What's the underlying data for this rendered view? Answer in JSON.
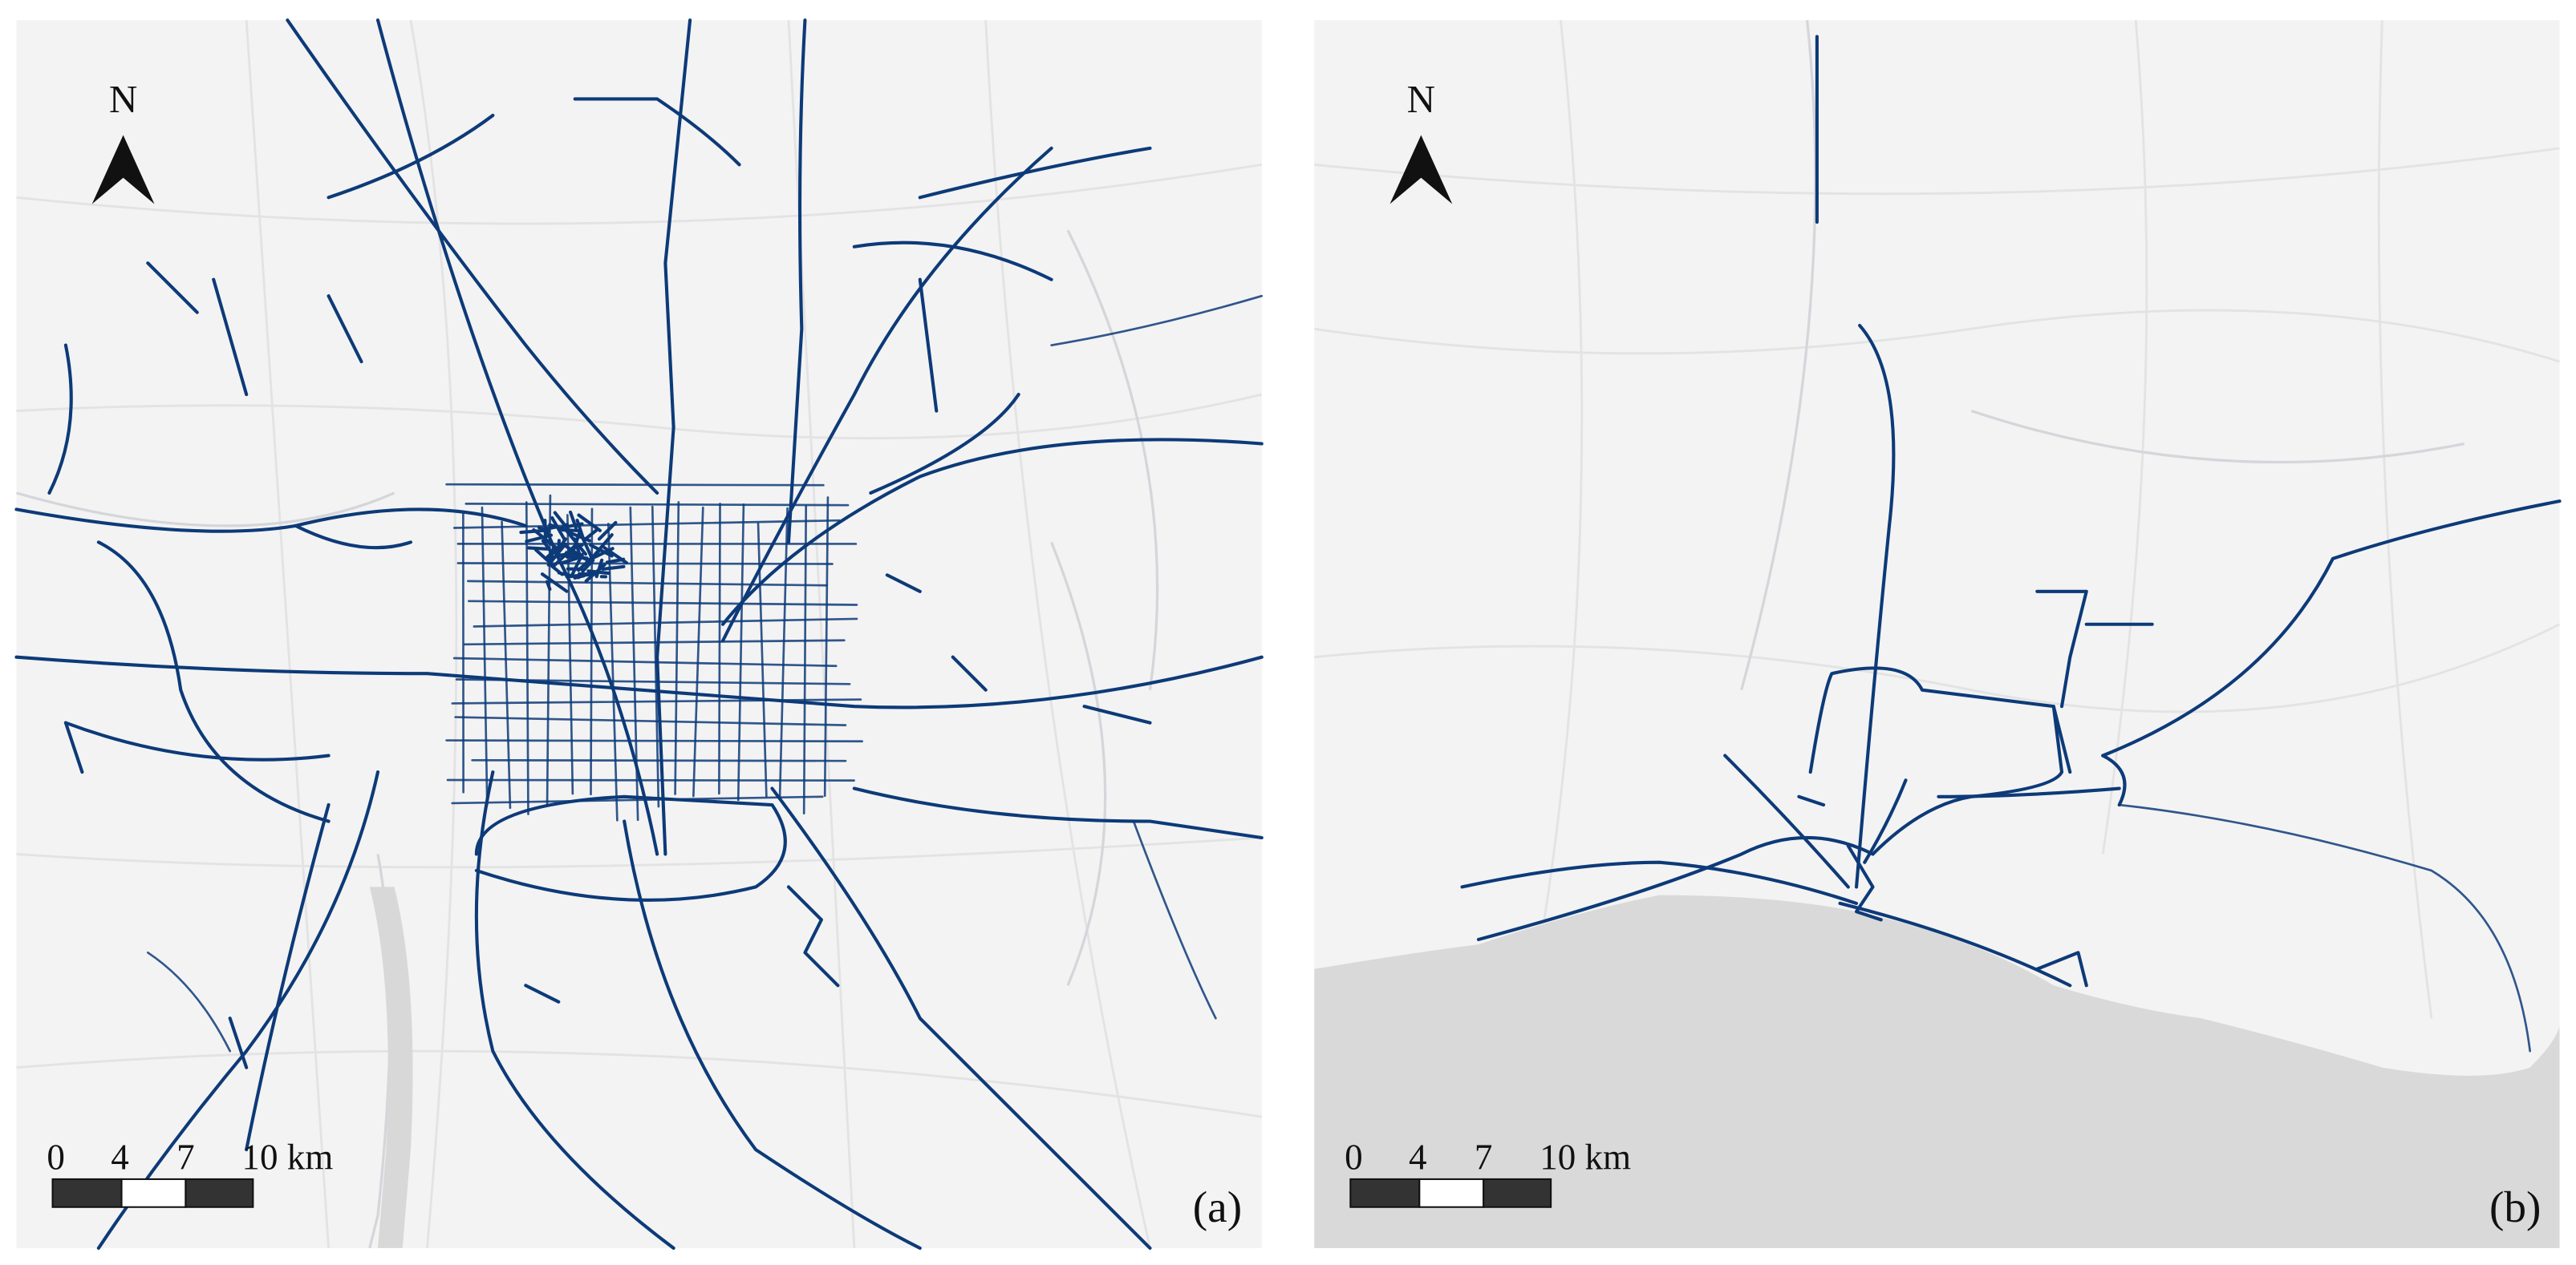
{
  "panels": [
    {
      "north": "N",
      "scale_labels": [
        "0",
        "4",
        "7",
        "10 km"
      ],
      "label": "(a)"
    },
    {
      "north": "N",
      "scale_labels": [
        "0",
        "4",
        "7",
        "10 km"
      ],
      "label": "(b)"
    }
  ]
}
